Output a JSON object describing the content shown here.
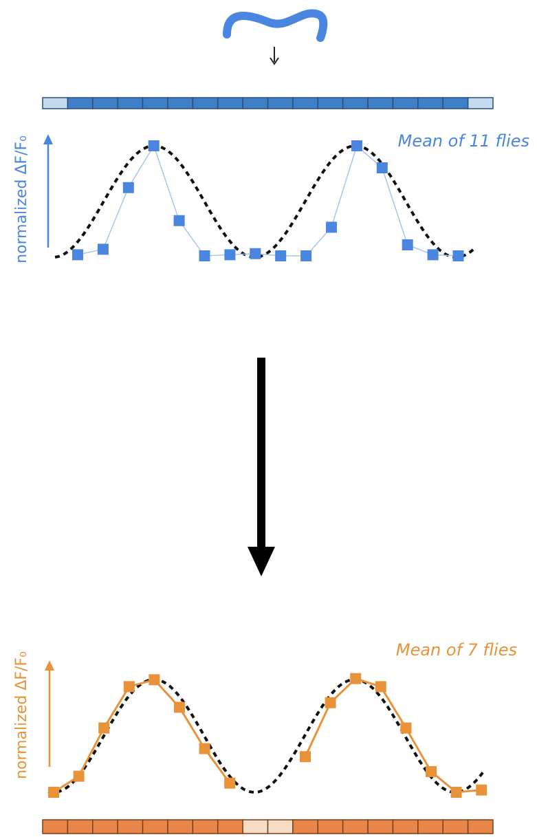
{
  "chart_data": [
    {
      "type": "line",
      "annotation": "Mean of 11 flies",
      "y_label": "normalized ΔF/F₀",
      "categories": [
        null,
        null,
        null,
        null,
        null,
        null,
        null,
        null,
        null,
        null,
        null,
        null,
        null,
        null,
        null,
        null
      ],
      "series": [
        {
          "color": "#4a86e0",
          "values": [
            0.01,
            0.06,
            0.62,
            1.0,
            0.32,
            0.0,
            0.01,
            0.02,
            0.0,
            0.0,
            0.26,
            1.0,
            0.8,
            0.1,
            0.01,
            0.0
          ]
        }
      ],
      "ylim": [
        0,
        1
      ]
    },
    {
      "type": "line",
      "annotation": "Mean of 7 flies",
      "y_label": "normalized ΔF/F₀",
      "categories": [
        null,
        null,
        null,
        null,
        null,
        null,
        null,
        null,
        null,
        null,
        null,
        null,
        null,
        null,
        null,
        null,
        null,
        null
      ],
      "series": [
        {
          "color": "#e8923a",
          "values": [
            0.0,
            0.14,
            0.56,
            0.92,
            0.98,
            0.74,
            0.38,
            0.08,
            null,
            null,
            0.31,
            0.78,
            0.99,
            0.92,
            0.56,
            0.18,
            0.0,
            0.02
          ]
        }
      ],
      "ylim": [
        0,
        1
      ]
    }
  ]
}
